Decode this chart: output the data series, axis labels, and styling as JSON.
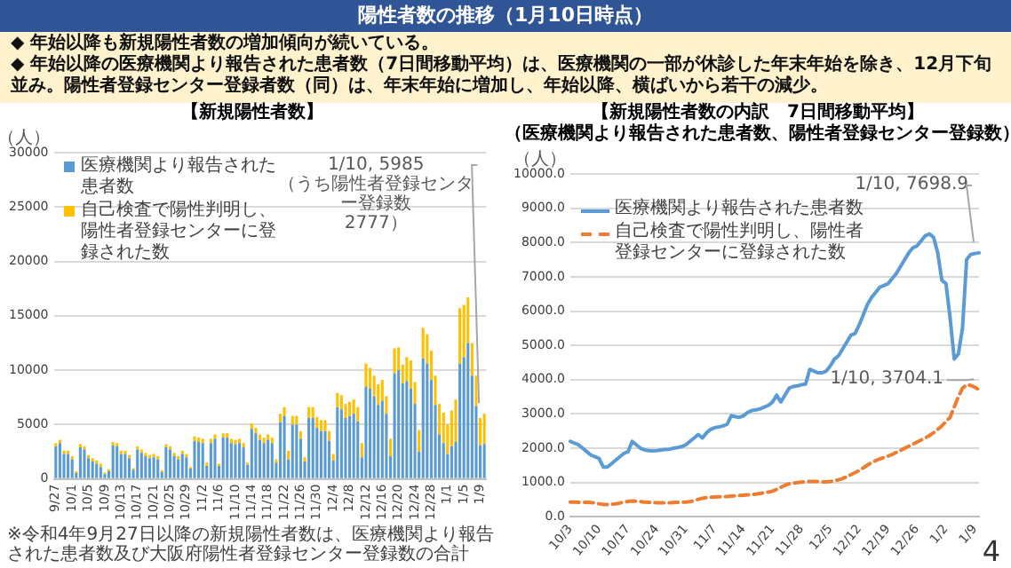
{
  "chart_data": [
    {
      "type": "other",
      "title": "陽性者数の推移（1月10日時点）",
      "annotations": [
        "◆ 年始以降も新規陽性者数の増加傾向が続いている。",
        "◆ 年始以降の医療機関より報告された患者数（7日間移動平均）は、医療機関の一部が休診した年末年始を除き、12月下旬並み。陽性者登録センター登録者数（同）は、年末年始に増加し、年始以降、横ばいから若干の減少。"
      ]
    },
    {
      "type": "bar",
      "title": "【新規陽性者数】",
      "ylabel": "（人）",
      "stacked": true,
      "grid": "y",
      "legend": "top left",
      "categories": [
        "9/27",
        null,
        null,
        null,
        "10/1",
        null,
        null,
        null,
        "10/5",
        null,
        null,
        null,
        "10/9",
        null,
        null,
        null,
        "10/13",
        null,
        null,
        null,
        "10/17",
        null,
        null,
        null,
        "10/21",
        null,
        null,
        null,
        "10/25",
        null,
        null,
        null,
        "10/29",
        null,
        null,
        null,
        "11/2",
        null,
        null,
        null,
        "11/6",
        null,
        null,
        null,
        "11/10",
        null,
        null,
        null,
        "11/14",
        null,
        null,
        null,
        "11/18",
        null,
        null,
        null,
        "11/22",
        null,
        null,
        null,
        "11/26",
        null,
        null,
        null,
        "11/30",
        null,
        null,
        null,
        "12/4",
        null,
        null,
        null,
        "12/8",
        null,
        null,
        null,
        "12/12",
        null,
        null,
        null,
        "12/16",
        null,
        null,
        null,
        "12/20",
        null,
        null,
        null,
        "12/24",
        null,
        null,
        null,
        "12/28",
        null,
        null,
        null,
        "1/1",
        null,
        null,
        null,
        "1/5",
        null,
        null,
        null,
        "1/9",
        null
      ],
      "ylim": [
        0,
        30000
      ],
      "yticks": [
        0,
        5000,
        10000,
        15000,
        20000,
        25000,
        30000
      ],
      "series": [
        {
          "name": "医療機関より報告された患者数",
          "color": "#5b9bd5",
          "values": [
            3000,
            3300,
            2300,
            2300,
            1800,
            550,
            2900,
            2700,
            1900,
            1600,
            1400,
            1100,
            450,
            700,
            3100,
            3000,
            2300,
            2300,
            1900,
            850,
            2700,
            2400,
            2100,
            1900,
            2000,
            1800,
            650,
            2900,
            2700,
            2100,
            1800,
            2300,
            2000,
            950,
            3500,
            3400,
            3300,
            1200,
            3300,
            3700,
            1200,
            3800,
            3800,
            3300,
            3200,
            3300,
            2900,
            1300,
            4600,
            4200,
            3600,
            3300,
            3600,
            3300,
            1500,
            5200,
            5800,
            1800,
            5000,
            5000,
            3700,
            1600,
            5600,
            5600,
            4700,
            4400,
            4400,
            3500,
            1700,
            6600,
            6400,
            5600,
            5800,
            6000,
            5300,
            2000,
            8500,
            8300,
            7600,
            6800,
            7200,
            6000,
            2100,
            9700,
            10000,
            8800,
            9000,
            8300,
            6900,
            2500,
            11100,
            10600,
            9100,
            6800,
            4100,
            3300,
            2300,
            3000,
            3400,
            10600,
            11200,
            12500,
            9500,
            6700,
            3100,
            3208
          ]
        },
        {
          "name": "自己検査で陽性判明し、陽性者登録センターに登録された数",
          "color": "#ffc000",
          "values": [
            300,
            300,
            300,
            300,
            300,
            150,
            300,
            300,
            300,
            300,
            300,
            300,
            150,
            200,
            300,
            300,
            300,
            300,
            300,
            150,
            300,
            300,
            300,
            300,
            300,
            300,
            150,
            300,
            300,
            300,
            300,
            300,
            300,
            150,
            400,
            400,
            400,
            300,
            400,
            400,
            200,
            400,
            400,
            400,
            400,
            400,
            400,
            200,
            500,
            500,
            500,
            500,
            500,
            500,
            300,
            800,
            800,
            800,
            800,
            800,
            700,
            400,
            1000,
            1000,
            1000,
            1000,
            1000,
            900,
            600,
            1300,
            1300,
            1300,
            1300,
            1300,
            1300,
            1300,
            2100,
            1900,
            1900,
            1900,
            1900,
            1600,
            1600,
            2300,
            2100,
            1700,
            2200,
            2600,
            2000,
            2000,
            2800,
            2700,
            2700,
            2700,
            2800,
            2800,
            2700,
            3300,
            3900,
            5100,
            4800,
            4200,
            3000,
            2800,
            2500,
            2777
          ]
        }
      ],
      "annotations": [
        "1/10, 5985\n（うち陽性者登録センター登録数\n2777）",
        "※令和4年9月27日以降の新規陽性者数は、医療機関より報告された患者数及び大阪府陽性者登録センター登録数の合計"
      ]
    },
    {
      "type": "line",
      "title": "【新規陽性者数の内訳　7日間移動平均】",
      "subtitle": "（医療機関より報告された患者数、陽性者登録センター登録数）",
      "ylabel": "（人）",
      "grid": "y",
      "legend": "top left",
      "marker": "none",
      "categories": [
        "10/3",
        null,
        null,
        null,
        null,
        null,
        null,
        "10/10",
        null,
        null,
        null,
        null,
        null,
        null,
        "10/17",
        null,
        null,
        null,
        null,
        null,
        null,
        "10/24",
        null,
        null,
        null,
        null,
        null,
        null,
        "10/31",
        null,
        null,
        null,
        null,
        null,
        null,
        "11/7",
        null,
        null,
        null,
        null,
        null,
        null,
        "11/14",
        null,
        null,
        null,
        null,
        null,
        null,
        "11/21",
        null,
        null,
        null,
        null,
        null,
        null,
        "11/28",
        null,
        null,
        null,
        null,
        null,
        null,
        "12/5",
        null,
        null,
        null,
        null,
        null,
        null,
        "12/12",
        null,
        null,
        null,
        null,
        null,
        null,
        "12/19",
        null,
        null,
        null,
        null,
        null,
        null,
        "12/26",
        null,
        null,
        null,
        null,
        null,
        null,
        "1/2",
        null,
        null,
        null,
        null,
        null,
        null,
        "1/9",
        null
      ],
      "ylim": [
        0,
        10000
      ],
      "yticks": [
        {
          "value": 0,
          "label": "0.0"
        },
        {
          "value": 1000,
          "label": "1000.0"
        },
        {
          "value": 2000,
          "label": "2000.0"
        },
        {
          "value": 3000,
          "label": "3000.0"
        },
        {
          "value": 4000,
          "label": "4000.0"
        },
        {
          "value": 5000,
          "label": "5000.0"
        },
        {
          "value": 6000,
          "label": "6000.0"
        },
        {
          "value": 7000,
          "label": "7000.0"
        },
        {
          "value": 8000,
          "label": "8000.0"
        },
        {
          "value": 9000,
          "label": "9000.0"
        },
        {
          "value": 10000,
          "label": "10000.0"
        }
      ],
      "series": [
        {
          "name": "医療機関より報告された患者数",
          "color": "#5b9bd5",
          "line_style": "solid",
          "values": [
            2200,
            2150,
            2100,
            2000,
            1900,
            1800,
            1750,
            1700,
            1450,
            1450,
            1550,
            1650,
            1750,
            1850,
            1900,
            2200,
            2100,
            2000,
            1950,
            1930,
            1920,
            1930,
            1950,
            1960,
            1970,
            2000,
            2020,
            2050,
            2100,
            2200,
            2300,
            2400,
            2300,
            2450,
            2550,
            2600,
            2620,
            2650,
            2700,
            2950,
            2920,
            2900,
            2950,
            3050,
            3100,
            3120,
            3150,
            3200,
            3250,
            3350,
            3550,
            3350,
            3550,
            3750,
            3800,
            3820,
            3850,
            3870,
            4300,
            4250,
            4200,
            4200,
            4250,
            4400,
            4600,
            4700,
            4900,
            5100,
            5300,
            5350,
            5600,
            5900,
            6200,
            6400,
            6550,
            6700,
            6750,
            6800,
            6950,
            7100,
            7300,
            7500,
            7700,
            7850,
            7900,
            8050,
            8200,
            8250,
            8150,
            7700,
            6900,
            6800,
            5800,
            4600,
            4750,
            5500,
            7500,
            7650,
            7680,
            7698.9
          ]
        },
        {
          "name": "自己検査で陽性判明し、陽性者登録センターに登録された数",
          "color": "#ed7d31",
          "line_style": "dashed",
          "values": [
            430,
            430,
            425,
            420,
            420,
            415,
            410,
            380,
            360,
            360,
            365,
            375,
            400,
            430,
            450,
            460,
            455,
            445,
            430,
            420,
            415,
            410,
            410,
            410,
            410,
            415,
            420,
            425,
            430,
            440,
            470,
            510,
            540,
            560,
            570,
            580,
            585,
            590,
            590,
            600,
            610,
            620,
            630,
            640,
            650,
            660,
            680,
            700,
            720,
            750,
            800,
            860,
            920,
            960,
            980,
            1000,
            1010,
            1020,
            1030,
            1030,
            1030,
            1020,
            1020,
            1030,
            1050,
            1080,
            1120,
            1170,
            1230,
            1290,
            1350,
            1430,
            1510,
            1580,
            1640,
            1690,
            1730,
            1770,
            1820,
            1880,
            1940,
            2000,
            2060,
            2120,
            2180,
            2240,
            2300,
            2370,
            2450,
            2550,
            2650,
            2780,
            2900,
            3200,
            3500,
            3750,
            3850,
            3830,
            3780,
            3704.1
          ]
        }
      ],
      "annotations": [
        "1/10, 7698.9",
        "1/10, 3704.1",
        "4"
      ]
    }
  ]
}
